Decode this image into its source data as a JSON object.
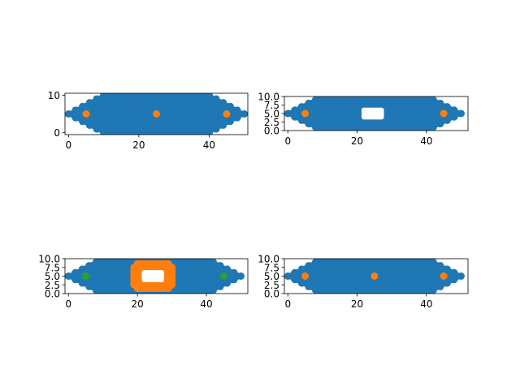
{
  "chart_data": [
    {
      "type": "scatter",
      "panel": "top-left",
      "xlim": [
        -1.0,
        51.0
      ],
      "ylim": [
        -0.5,
        10.5
      ],
      "x_ticks": [
        0,
        20,
        40
      ],
      "y_ticks": [
        0,
        10
      ],
      "y_tick_labels": [
        "0",
        "10"
      ],
      "grid": false,
      "region": {
        "x_start": 0,
        "x_end": 50,
        "y_center": 5,
        "y_half_height": 5,
        "taper_width": 10
      },
      "hole": null,
      "series": [
        {
          "role": "base",
          "color": "#1f77b4",
          "points": "filled hexagonal region"
        },
        {
          "role": "markers",
          "color": "#ff7f0e",
          "points": [
            [
              5,
              5
            ],
            [
              25,
              5
            ],
            [
              45,
              5
            ]
          ]
        }
      ]
    },
    {
      "type": "scatter",
      "panel": "top-right",
      "xlim": [
        -1.0,
        52.0
      ],
      "ylim": [
        0.0,
        10.0
      ],
      "x_ticks": [
        0,
        20,
        40
      ],
      "y_ticks": [
        0.0,
        2.5,
        5.0,
        7.5,
        10.0
      ],
      "y_tick_labels": [
        "0.0",
        "2.5",
        "5.0",
        "7.5",
        "10.0"
      ],
      "grid": false,
      "region": {
        "x_start": 0,
        "x_end": 50,
        "y_center": 5,
        "y_half_height": 5,
        "taper_width": 10
      },
      "hole": {
        "x": [
          22,
          27
        ],
        "y": [
          4,
          6
        ]
      },
      "series": [
        {
          "role": "base",
          "color": "#1f77b4",
          "points": "filled hexagonal region with hole"
        },
        {
          "role": "markers",
          "color": "#ff7f0e",
          "points": [
            [
              5,
              5
            ],
            [
              45,
              5
            ]
          ]
        }
      ]
    },
    {
      "type": "scatter",
      "panel": "bottom-left",
      "xlim": [
        -1.0,
        52.0
      ],
      "ylim": [
        0.0,
        10.0
      ],
      "x_ticks": [
        0,
        20,
        40
      ],
      "y_ticks": [
        0.0,
        2.5,
        5.0,
        7.5,
        10.0
      ],
      "y_tick_labels": [
        "0.0",
        "2.5",
        "5.0",
        "7.5",
        "10.0"
      ],
      "grid": false,
      "region": {
        "x_start": 0,
        "x_end": 50,
        "y_center": 5,
        "y_half_height": 5,
        "taper_width": 10
      },
      "hole": {
        "x": [
          22,
          27
        ],
        "y": [
          4,
          6
        ]
      },
      "series": [
        {
          "role": "base",
          "color": "#1f77b4",
          "points": "filled hexagonal region with hole"
        },
        {
          "role": "ring",
          "color": "#ff7f0e",
          "points": "ring around hole",
          "x": [
            19,
            30
          ],
          "y": [
            1.5,
            8.5
          ]
        },
        {
          "role": "markers",
          "color": "#2ca02c",
          "points": [
            [
              5,
              5
            ],
            [
              45,
              5
            ]
          ]
        }
      ]
    },
    {
      "type": "scatter",
      "panel": "bottom-right",
      "xlim": [
        -1.0,
        52.0
      ],
      "ylim": [
        0.0,
        10.0
      ],
      "x_ticks": [
        0,
        20,
        40
      ],
      "y_ticks": [
        0.0,
        2.5,
        5.0,
        7.5,
        10.0
      ],
      "y_tick_labels": [
        "0.0",
        "2.5",
        "5.0",
        "7.5",
        "10.0"
      ],
      "grid": false,
      "region": {
        "x_start": 0,
        "x_end": 50,
        "y_center": 5,
        "y_half_height": 5,
        "taper_width": 10
      },
      "hole": null,
      "series": [
        {
          "role": "base",
          "color": "#1f77b4",
          "points": "filled hexagonal region"
        },
        {
          "role": "markers",
          "color": "#ff7f0e",
          "points": [
            [
              5,
              5
            ],
            [
              25,
              5
            ],
            [
              45,
              5
            ]
          ]
        }
      ]
    }
  ]
}
